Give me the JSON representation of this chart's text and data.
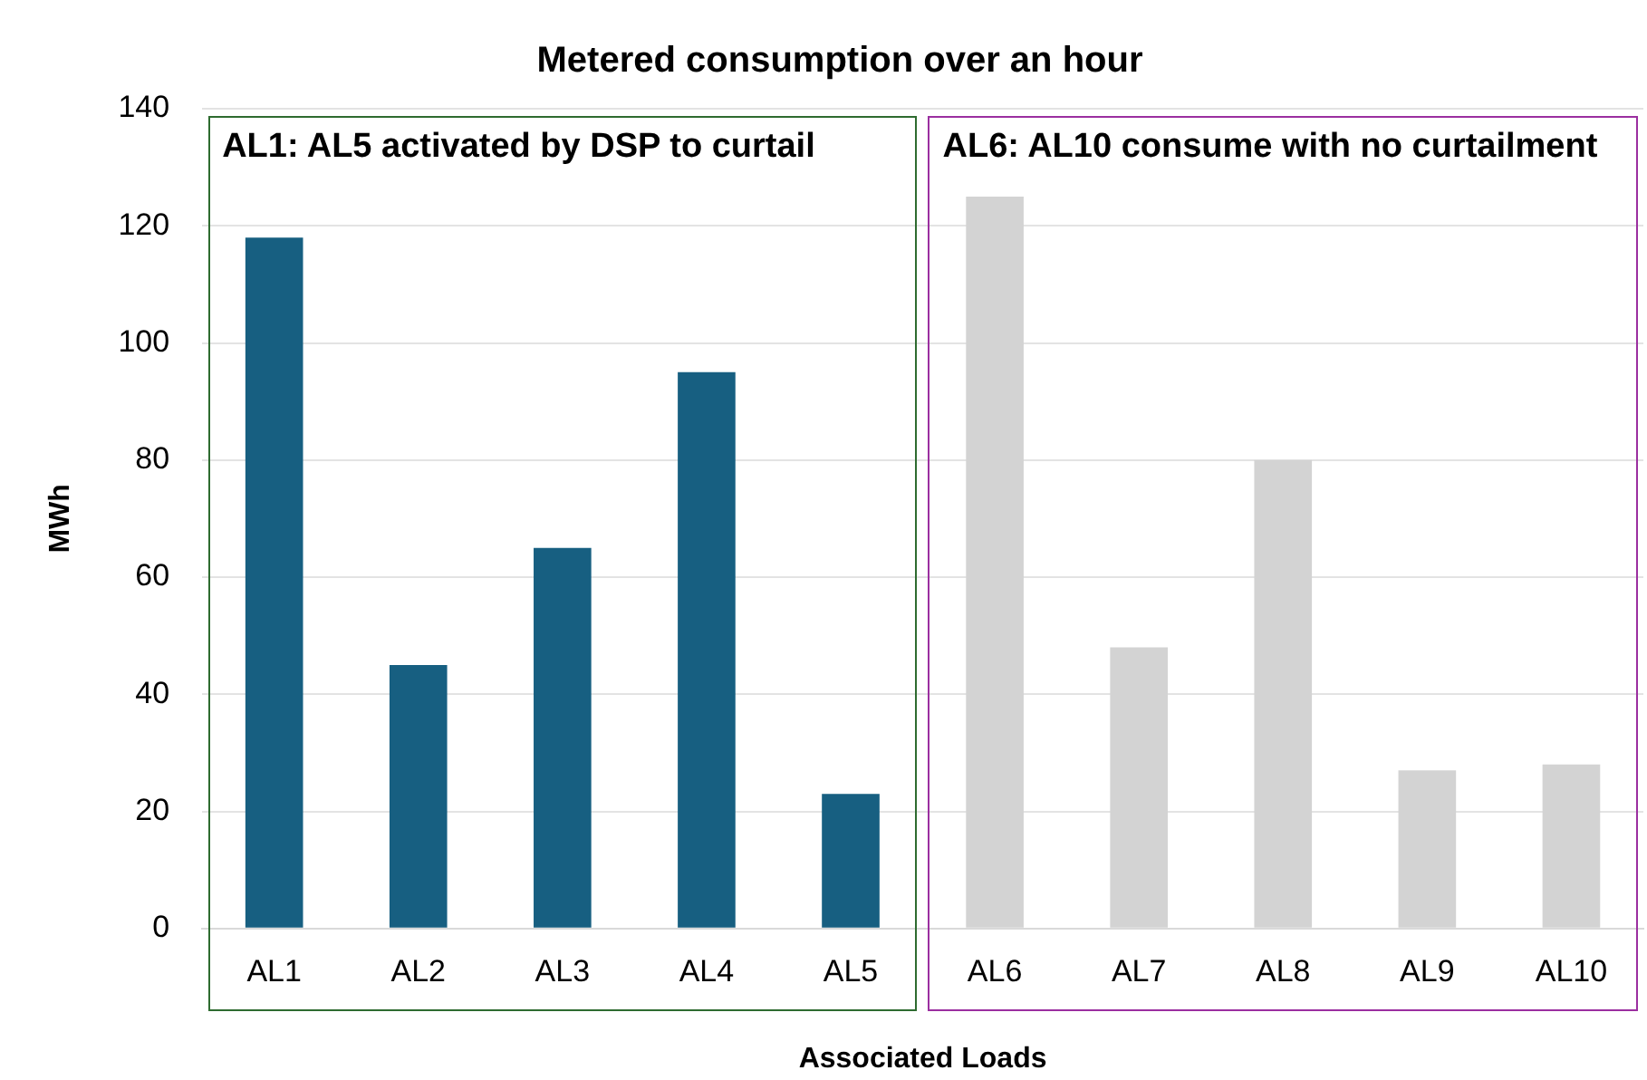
{
  "chart_data": {
    "type": "bar",
    "title": "Metered consumption over an hour",
    "xlabel": "Associated Loads",
    "ylabel": "MWh",
    "categories": [
      "AL1",
      "AL2",
      "AL3",
      "AL4",
      "AL5",
      "AL6",
      "AL7",
      "AL8",
      "AL9",
      "AL10"
    ],
    "values": [
      118,
      45,
      65,
      95,
      23,
      125,
      48,
      80,
      27,
      28
    ],
    "colors": [
      "#175f81",
      "#175f81",
      "#175f81",
      "#175f81",
      "#175f81",
      "#d3d3d3",
      "#d3d3d3",
      "#d3d3d3",
      "#d3d3d3",
      "#d3d3d3"
    ],
    "ylim": [
      0,
      140
    ],
    "yticks": [
      0,
      20,
      40,
      60,
      80,
      100,
      120,
      140
    ],
    "grid": "y",
    "legend": false,
    "annotations": [
      "AL1: AL5 activated by DSP to curtail",
      "AL6: AL10 consume with no curtailment"
    ]
  }
}
